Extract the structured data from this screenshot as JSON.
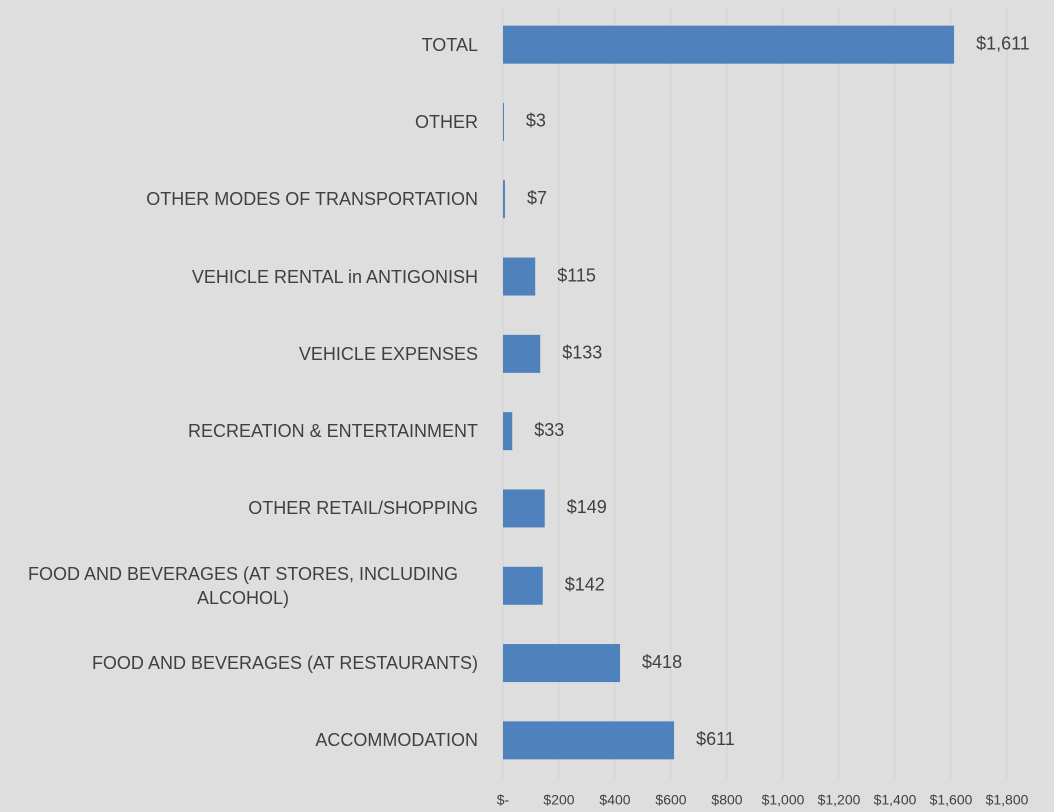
{
  "chart_data": {
    "type": "bar",
    "orientation": "horizontal",
    "categories": [
      "TOTAL",
      "OTHER",
      "OTHER MODES OF TRANSPORTATION",
      "VEHICLE RENTAL in ANTIGONISH",
      "VEHICLE EXPENSES",
      "RECREATION & ENTERTAINMENT",
      "OTHER RETAIL/SHOPPING",
      "FOOD AND BEVERAGES (AT STORES, INCLUDING ALCOHOL)",
      "FOOD AND BEVERAGES (AT RESTAURANTS)",
      "ACCOMMODATION"
    ],
    "values": [
      1611,
      3,
      7,
      115,
      133,
      33,
      149,
      142,
      418,
      611
    ],
    "value_labels": [
      "$1,611",
      "$3",
      "$7",
      "$115",
      "$133",
      "$33",
      "$149",
      "$142",
      "$418",
      "$611"
    ],
    "color": "#4f81bd",
    "xlim": [
      0,
      1800
    ],
    "xticks": [
      {
        "value": 0,
        "label": "$-"
      },
      {
        "value": 200,
        "label": "$200"
      },
      {
        "value": 400,
        "label": "$400"
      },
      {
        "value": 600,
        "label": "$600"
      },
      {
        "value": 800,
        "label": "$800"
      },
      {
        "value": 1000,
        "label": "$1,000"
      },
      {
        "value": 1200,
        "label": "$1,200"
      },
      {
        "value": 1400,
        "label": "$1,400"
      },
      {
        "value": 1600,
        "label": "$1,600"
      },
      {
        "value": 1800,
        "label": "$1,800"
      }
    ],
    "grid": true
  }
}
